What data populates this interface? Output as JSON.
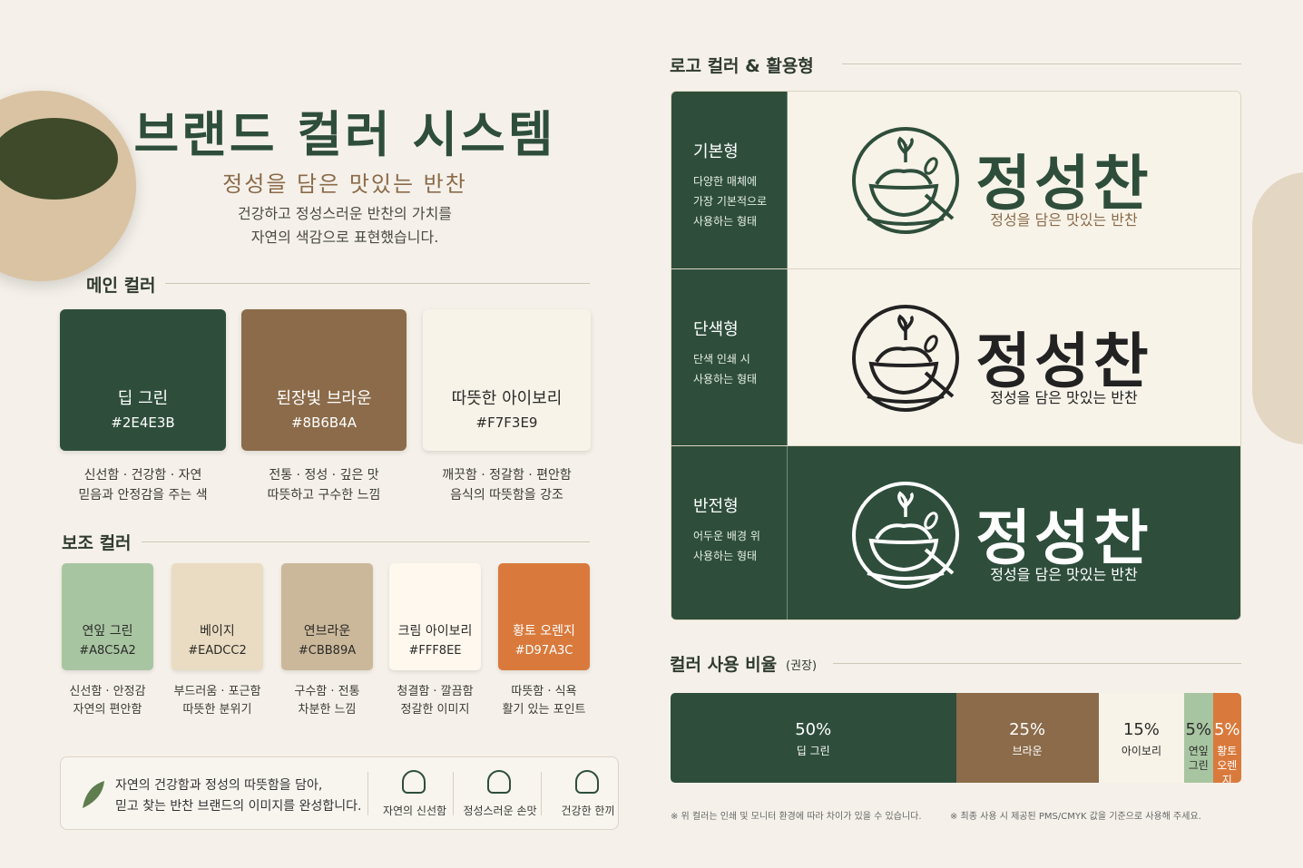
{
  "header": {
    "title": "브랜드 컬러 시스템",
    "subtitle": "정성을 담은 맛있는 반찬",
    "description": [
      "건강하고 정성스러운 반찬의 가치를",
      "자연의 색감으로 표현했습니다."
    ]
  },
  "main_colors": {
    "heading": "메인 컬러",
    "items": [
      {
        "name": "딥 그린",
        "hex": "#2E4E3B",
        "desc": [
          "신선함 · 건강함 · 자연",
          "믿음과 안정감을 주는 색"
        ]
      },
      {
        "name": "된장빛 브라운",
        "hex": "#8B6B4A",
        "desc": [
          "전통 · 정성 · 깊은 맛",
          "따뜻하고 구수한 느낌"
        ]
      },
      {
        "name": "따뜻한 아이보리",
        "hex": "#F7F3E9",
        "desc": [
          "깨끗함 · 정갈함 · 편안함",
          "음식의 따뜻함을 강조"
        ]
      }
    ]
  },
  "sub_colors": {
    "heading": "보조 컬러",
    "items": [
      {
        "name": "연잎 그린",
        "hex": "#A8C5A2",
        "desc": [
          "신선함 · 안정감",
          "자연의 편안함"
        ]
      },
      {
        "name": "베이지",
        "hex": "#EADCC2",
        "desc": [
          "부드러움 · 포근함",
          "따뜻한 분위기"
        ]
      },
      {
        "name": "연브라운",
        "hex": "#CBB89A",
        "desc": [
          "구수함 · 전통",
          "차분한 느낌"
        ]
      },
      {
        "name": "크림 아이보리",
        "hex": "#FFF8EE",
        "desc": [
          "청결함 · 깔끔함",
          "정갈한 이미지"
        ]
      },
      {
        "name": "황토 오렌지",
        "hex": "#D97A3C",
        "desc": [
          "따뜻함 · 식욕",
          "활기 있는 포인트"
        ]
      }
    ]
  },
  "closing": {
    "lines": [
      "자연의 건강함과 정성의 따뜻함을 담아,",
      "믿고 찾는 반찬 브랜드의 이미지를 완성합니다."
    ],
    "badges": [
      "자연의 신선함",
      "정성스러운 손맛",
      "건강한 한끼"
    ]
  },
  "logo": {
    "heading": "로고 컬러 & 활용형",
    "brand": "정성찬",
    "tagline": "정성을 담은 맛있는 반찬",
    "variants": [
      {
        "name": "기본형",
        "desc": [
          "다양한 매체에",
          "가장 기본적으로",
          "사용하는 형태"
        ]
      },
      {
        "name": "단색형",
        "desc": [
          "단색 인쇄 시",
          "사용하는 형태"
        ]
      },
      {
        "name": "반전형",
        "desc": [
          "어두운 배경 위",
          "사용하는 형태"
        ]
      }
    ]
  },
  "ratio": {
    "heading": "컬러 사용 비율",
    "note": "(권장)",
    "values": [
      50,
      25,
      15,
      5,
      5
    ],
    "value_labels": [
      "50%",
      "25%",
      "15%",
      "5%",
      "5%"
    ],
    "names": [
      "딥 그린",
      "브라운",
      "아이보리",
      "연잎 그린",
      "황토 오렌지"
    ],
    "colors": [
      "#2E4E3B",
      "#8B6B4A",
      "#F7F3E9",
      "#A8C5A2",
      "#D97A3C"
    ]
  },
  "footnotes": [
    "※ 위 컬러는 인쇄 및 모니터 환경에 따라 차이가 있을 수 있습니다.",
    "※ 최종 사용 시 제공된 PMS/CMYK 값을 기준으로 사용해 주세요."
  ]
}
